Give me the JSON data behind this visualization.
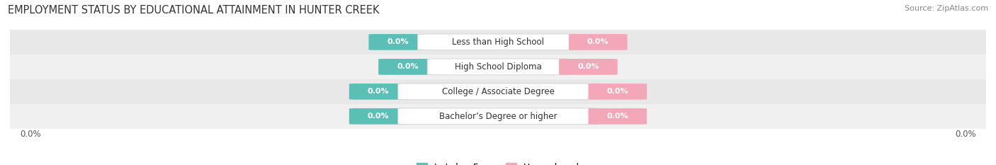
{
  "title": "EMPLOYMENT STATUS BY EDUCATIONAL ATTAINMENT IN HUNTER CREEK",
  "source": "Source: ZipAtlas.com",
  "categories": [
    "Less than High School",
    "High School Diploma",
    "College / Associate Degree",
    "Bachelor’s Degree or higher"
  ],
  "labor_force_values": [
    0.0,
    0.0,
    0.0,
    0.0
  ],
  "unemployed_values": [
    0.0,
    0.0,
    0.0,
    0.0
  ],
  "labor_force_color": "#5BBFB5",
  "unemployed_color": "#F4A7B9",
  "row_bg_even": "#F0F0F0",
  "row_bg_odd": "#E8E8E8",
  "title_fontsize": 10.5,
  "source_fontsize": 8,
  "axis_label_fontsize": 8.5,
  "legend_fontsize": 9,
  "bar_height": 0.62,
  "xlim": [
    -1.0,
    1.0
  ],
  "left_label": "0.0%",
  "right_label": "0.0%",
  "background_color": "#FFFFFF",
  "label_fontsize": 8,
  "category_fontsize": 8.5
}
